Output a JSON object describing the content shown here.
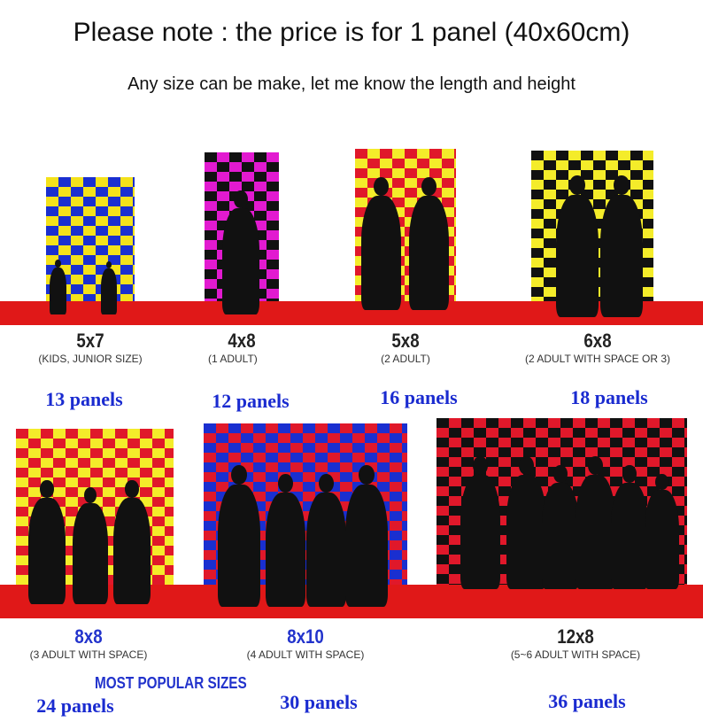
{
  "header": {
    "title": "Please note : the price is for 1 panel (40x60cm)",
    "subtitle": "Any size can be make, let me know the length and height"
  },
  "sizes": [
    {
      "size": "5x7",
      "desc": "(KIDS, JUNIOR SIZE)",
      "panels": "13 panels",
      "colors": [
        "#1a2fd0",
        "#f4e21a"
      ]
    },
    {
      "size": "4x8",
      "desc": "(1 ADULT)",
      "panels": "12 panels",
      "colors": [
        "#e21ad0",
        "#111111"
      ]
    },
    {
      "size": "5x8",
      "desc": "(2 ADULT)",
      "panels": "16 panels",
      "colors": [
        "#f4ec2a",
        "#e0182a"
      ]
    },
    {
      "size": "6x8",
      "desc": "(2 ADULT WITH SPACE OR 3)",
      "panels": "18 panels",
      "colors": [
        "#f4ec2a",
        "#111111"
      ]
    },
    {
      "size": "8x8",
      "desc": "(3 ADULT WITH SPACE)",
      "panels": "24 panels",
      "colors": [
        "#f4ec2a",
        "#e0182a"
      ]
    },
    {
      "size": "8x10",
      "desc": "(4 ADULT WITH SPACE)",
      "panels": "30 panels",
      "colors": [
        "#e0182a",
        "#1a2fd0"
      ]
    },
    {
      "size": "12x8",
      "desc": "(5~6 ADULT WITH SPACE)",
      "panels": "36 panels",
      "colors": [
        "#e0182a",
        "#111111"
      ]
    }
  ],
  "popular_label": "MOST POPULAR SIZES",
  "floor_color": "#e01818"
}
